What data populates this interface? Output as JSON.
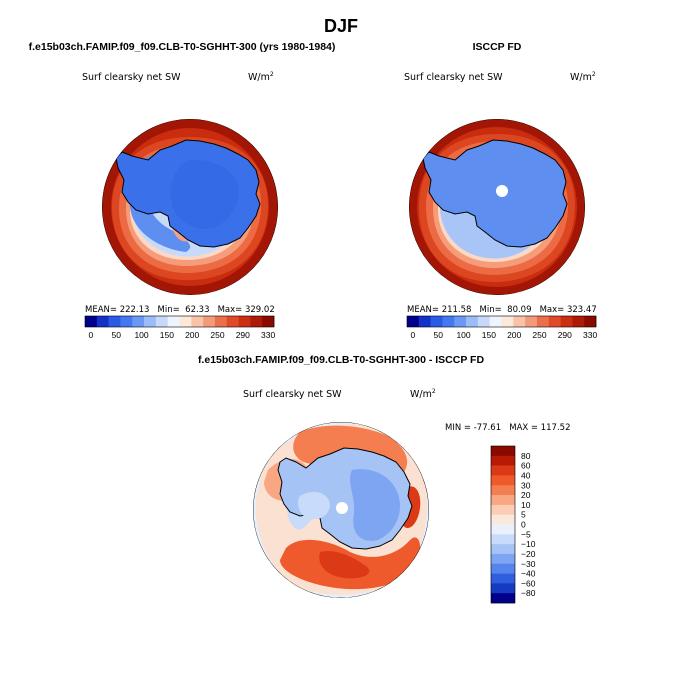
{
  "chart_data": {
    "type": "heatmap",
    "title": "DJF",
    "colorbar_top": {
      "levels": [
        0,
        50,
        100,
        150,
        200,
        250,
        290,
        330
      ],
      "colors": [
        "#00008b",
        "#1432c8",
        "#2a5be6",
        "#4478f0",
        "#6b98f4",
        "#9bbcf7",
        "#c6d9fa",
        "#eef4fe",
        "#fde8da",
        "#f8c3a8",
        "#f39a79",
        "#ec6f4c",
        "#e04a28",
        "#cc2e12",
        "#ad1a05",
        "#8a0a00"
      ]
    },
    "colorbar_diff": {
      "levels": [
        "80",
        "60",
        "40",
        "30",
        "20",
        "10",
        "5",
        "0",
        "−5",
        "−10",
        "−20",
        "−30",
        "−40",
        "−60",
        "−80"
      ],
      "colors": [
        "#8a0a00",
        "#b81a06",
        "#dc3a16",
        "#ef5a2c",
        "#f57e50",
        "#f9a683",
        "#fccdb4",
        "#fbe8dc",
        "#e9f1fd",
        "#c9dbfa",
        "#a6c3f6",
        "#7ea5f1",
        "#5585ec",
        "#2f5fdc",
        "#153bc2",
        "#00008b"
      ]
    },
    "panels": [
      {
        "id": "model",
        "header": "f.e15b03ch.FAMIP.f09_f09.CLB-T0-SGHHT-300 (yrs 1980-1984)",
        "variable": "Surf clearsky net SW",
        "units": "W/m",
        "units_exp": "2",
        "stats_text": "MEAN= 222.13   Min=  62.33   Max= 329.02",
        "mean": 222.13,
        "min": 62.33,
        "max": 329.02,
        "colorbar_labels": [
          "0",
          "50",
          "100",
          "150",
          "200",
          "250",
          "290",
          "330"
        ]
      },
      {
        "id": "obs",
        "header": "ISCCP FD",
        "variable": "Surf clearsky net SW",
        "units": "W/m",
        "units_exp": "2",
        "stats_text": "MEAN= 211.58   Min=  80.09   Max= 323.47",
        "mean": 211.58,
        "min": 80.09,
        "max": 323.47,
        "colorbar_labels": [
          "0",
          "50",
          "100",
          "150",
          "200",
          "250",
          "290",
          "330"
        ]
      },
      {
        "id": "diff",
        "header": "f.e15b03ch.FAMIP.f09_f09.CLB-T0-SGHHT-300 - ISCCP FD",
        "variable": "Surf clearsky net SW",
        "units": "W/m",
        "units_exp": "2",
        "stats_text": "MIN = -77.61   MAX = 117.52",
        "min": -77.61,
        "max": 117.52
      }
    ]
  }
}
